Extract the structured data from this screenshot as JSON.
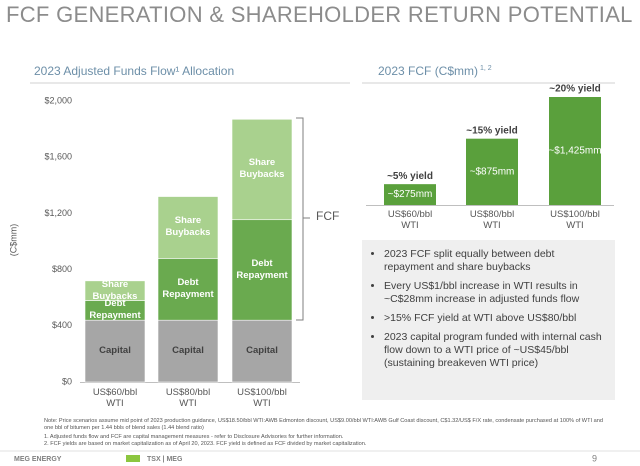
{
  "header": {
    "title": "FCF GENERATION & SHAREHOLDER RETURN POTENTIAL"
  },
  "chart_data": [
    {
      "type": "stacked-bar",
      "title": "2023 Adjusted Funds Flow¹ Allocation",
      "ylabel": "(C$mm)",
      "categories": [
        "US$60/bbl WTI",
        "US$80/bbl WTI",
        "US$100/bbl WTI"
      ],
      "series": [
        {
          "name": "Capital",
          "color": "#a6a6a6",
          "label_color": "#404040",
          "values": [
            440,
            440,
            440
          ]
        },
        {
          "name": "Debt Repayment",
          "color": "#6aaa4f",
          "label_color": "#ffffff",
          "values": [
            140,
            440,
            715
          ]
        },
        {
          "name": "Share Buybacks",
          "color": "#a9d18e",
          "label_color": "#ffffff",
          "values": [
            140,
            440,
            715
          ]
        }
      ],
      "ylim": [
        0,
        2000
      ],
      "yticks": [
        {
          "value": 0,
          "label": "$0"
        },
        {
          "value": 400,
          "label": "$400"
        },
        {
          "value": 800,
          "label": "$800"
        },
        {
          "value": 1200,
          "label": "$1,200"
        },
        {
          "value": 1600,
          "label": "$1,600"
        },
        {
          "value": 2000,
          "label": "$2,000"
        }
      ],
      "grid": false,
      "annotation": "FCF"
    },
    {
      "type": "bar",
      "title": "2023 FCF (C$mm)",
      "title_superscript": "1, 2",
      "categories": [
        "US$60/bbl WTI",
        "US$80/bbl WTI",
        "US$100/bbl WTI"
      ],
      "values": [
        275,
        875,
        1425
      ],
      "value_labels": [
        "~$275mm",
        "~$875mm",
        "~$1,425mm"
      ],
      "bar_annotations": [
        "~5% yield",
        "~15% yield",
        "~20% yield"
      ],
      "color": "#5aa03c"
    }
  ],
  "bullets": [
    "2023 FCF split equally between debt repayment and share buybacks",
    "Every US$1/bbl increase in WTI results in ~C$28mm increase in adjusted funds flow",
    ">15% FCF yield at WTI above US$80/bbl",
    "2023 capital program funded with internal cash flow down to a WTI price of ~US$45/bbl (sustaining breakeven WTI price)"
  ],
  "notes": [
    "Note: Price scenarios assume mid point of 2023 production guidance, US$18.50/bbl WTI:AWB Edmonton discount, US$9.00/bbl WTI:AWB Gulf Coast discount, C$1.32/US$ F/X rate, condensate purchased at 100% of WTI and one bbl of bitumen per 1.44 bbls of blend sales (1.44 blend ratio)",
    "1.   Adjusted funds flow and FCF are capital management measures - refer to Disclosure Advisories for further information.",
    "2.   FCF yields are based on market capitalization as of April 20, 2023. FCF yield is defined as FCF divided by market capitalization."
  ],
  "footer": {
    "logo": "MEG ENERGY",
    "ticker": "TSX  |  MEG",
    "page": "9"
  }
}
